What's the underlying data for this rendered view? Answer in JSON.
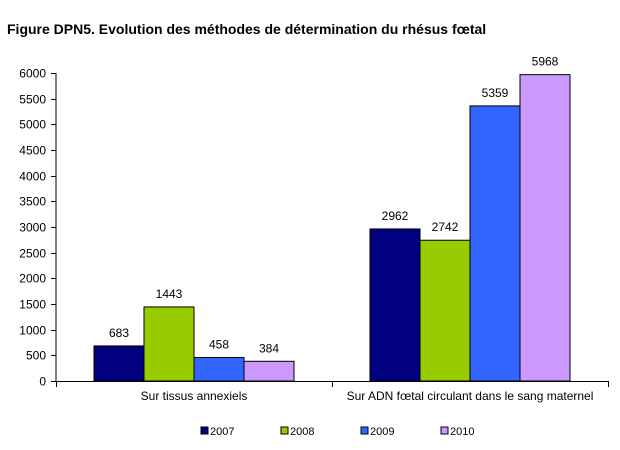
{
  "chart_data": {
    "type": "bar",
    "title": "Figure DPN5. Evolution des méthodes de détermination du rhésus fœtal",
    "xlabel": "",
    "ylabel": "",
    "ylim": [
      0,
      6000
    ],
    "yticks": [
      0,
      500,
      1000,
      1500,
      2000,
      2500,
      3000,
      3500,
      4000,
      4500,
      5000,
      5500,
      6000
    ],
    "grid": false,
    "legend_position": "bottom",
    "categories": [
      "Sur tissus annexiels",
      "Sur ADN fœtal circulant dans le sang maternel"
    ],
    "series": [
      {
        "name": "2007",
        "color": "#000080",
        "values": [
          683,
          2962
        ]
      },
      {
        "name": "2008",
        "color": "#99CC00",
        "values": [
          1443,
          2742
        ]
      },
      {
        "name": "2009",
        "color": "#3366FF",
        "values": [
          458,
          5359
        ]
      },
      {
        "name": "2010",
        "color": "#CC99FF",
        "values": [
          384,
          5968
        ]
      }
    ]
  }
}
